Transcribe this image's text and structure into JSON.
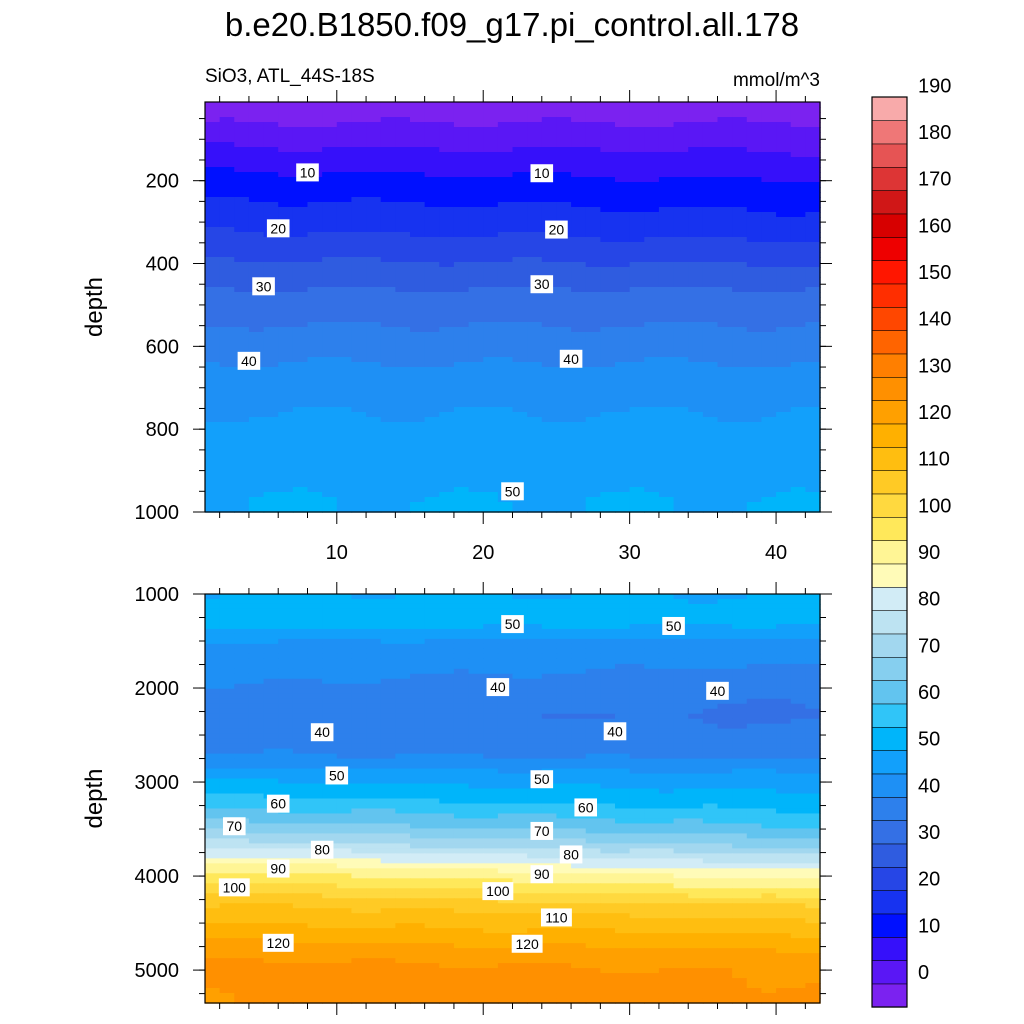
{
  "chart_data": {
    "type": "contour",
    "title": "b.e20.B1850.f09_g17.pi_control.all.178",
    "variable": "SiO3, ATL_44S-18S",
    "units": "mmol/m^3",
    "contour_interval": 5,
    "colorbar": {
      "levels": [
        -5,
        0,
        5,
        10,
        15,
        20,
        25,
        30,
        35,
        40,
        45,
        50,
        55,
        60,
        65,
        70,
        75,
        80,
        85,
        90,
        95,
        100,
        105,
        110,
        115,
        120,
        125,
        130,
        135,
        140,
        145,
        150,
        155,
        160,
        165,
        170,
        175,
        180,
        185,
        190,
        195
      ],
      "tick_labels": [
        "0",
        "10",
        "20",
        "30",
        "40",
        "50",
        "60",
        "70",
        "80",
        "90",
        "100",
        "110",
        "120",
        "130",
        "140",
        "150",
        "160",
        "170",
        "180",
        "190"
      ],
      "colors": [
        "#7b22f0",
        "#5a17f5",
        "#3610fa",
        "#0010ff",
        "#1733f0",
        "#2646e6",
        "#2f5ce0",
        "#3470e5",
        "#2d80ec",
        "#1e90f5",
        "#12a0fb",
        "#00b5fa",
        "#30c5f8",
        "#62c4ef",
        "#86cfef",
        "#a2d7ef",
        "#bde3f2",
        "#d2ecf6",
        "#fffbb8",
        "#fff595",
        "#ffe85a",
        "#ffd93f",
        "#ffca25",
        "#ffbe10",
        "#ffb000",
        "#ffa000",
        "#ff9000",
        "#ff7f00",
        "#ff6400",
        "#ff4700",
        "#ff2e00",
        "#ff1600",
        "#ee0000",
        "#d70000",
        "#d01717",
        "#dd3535",
        "#e65454",
        "#ef7777",
        "#f8aaaa"
      ]
    },
    "panels": [
      {
        "name": "upper",
        "xlim": [
          1,
          43
        ],
        "ylim": [
          1000,
          10
        ],
        "ylabel": "depth",
        "xticks": [
          "10",
          "20",
          "30",
          "40"
        ],
        "yticks": [
          "200",
          "400",
          "600",
          "800",
          "1000"
        ],
        "contour_labels": [
          {
            "text": "10",
            "x": 8,
            "y": 180
          },
          {
            "text": "10",
            "x": 24,
            "y": 182
          },
          {
            "text": "20",
            "x": 6,
            "y": 315
          },
          {
            "text": "20",
            "x": 25,
            "y": 318
          },
          {
            "text": "30",
            "x": 5,
            "y": 455
          },
          {
            "text": "30",
            "x": 24,
            "y": 450
          },
          {
            "text": "40",
            "x": 4,
            "y": 635
          },
          {
            "text": "40",
            "x": 26,
            "y": 630
          },
          {
            "text": "50",
            "x": 22,
            "y": 950
          }
        ]
      },
      {
        "name": "lower",
        "xlim": [
          1,
          43
        ],
        "ylim": [
          5350,
          1000
        ],
        "ylabel": "depth",
        "yticks": [
          "1000",
          "2000",
          "3000",
          "4000",
          "5000"
        ],
        "contour_labels": [
          {
            "text": "50",
            "x": 22,
            "y": 1320
          },
          {
            "text": "50",
            "x": 33,
            "y": 1340
          },
          {
            "text": "40",
            "x": 21,
            "y": 1990
          },
          {
            "text": "40",
            "x": 36,
            "y": 2030
          },
          {
            "text": "40",
            "x": 9,
            "y": 2470
          },
          {
            "text": "40",
            "x": 29,
            "y": 2460
          },
          {
            "text": "50",
            "x": 10,
            "y": 2930
          },
          {
            "text": "50",
            "x": 24,
            "y": 2970
          },
          {
            "text": "60",
            "x": 6,
            "y": 3230
          },
          {
            "text": "60",
            "x": 27,
            "y": 3270
          },
          {
            "text": "70",
            "x": 3,
            "y": 3470
          },
          {
            "text": "70",
            "x": 24,
            "y": 3520
          },
          {
            "text": "80",
            "x": 9,
            "y": 3720
          },
          {
            "text": "80",
            "x": 26,
            "y": 3770
          },
          {
            "text": "90",
            "x": 6,
            "y": 3920
          },
          {
            "text": "90",
            "x": 24,
            "y": 3980
          },
          {
            "text": "100",
            "x": 3,
            "y": 4120
          },
          {
            "text": "100",
            "x": 21,
            "y": 4160
          },
          {
            "text": "110",
            "x": 25,
            "y": 4440
          },
          {
            "text": "120",
            "x": 6,
            "y": 4710
          },
          {
            "text": "120",
            "x": 23,
            "y": 4720
          }
        ]
      }
    ]
  }
}
